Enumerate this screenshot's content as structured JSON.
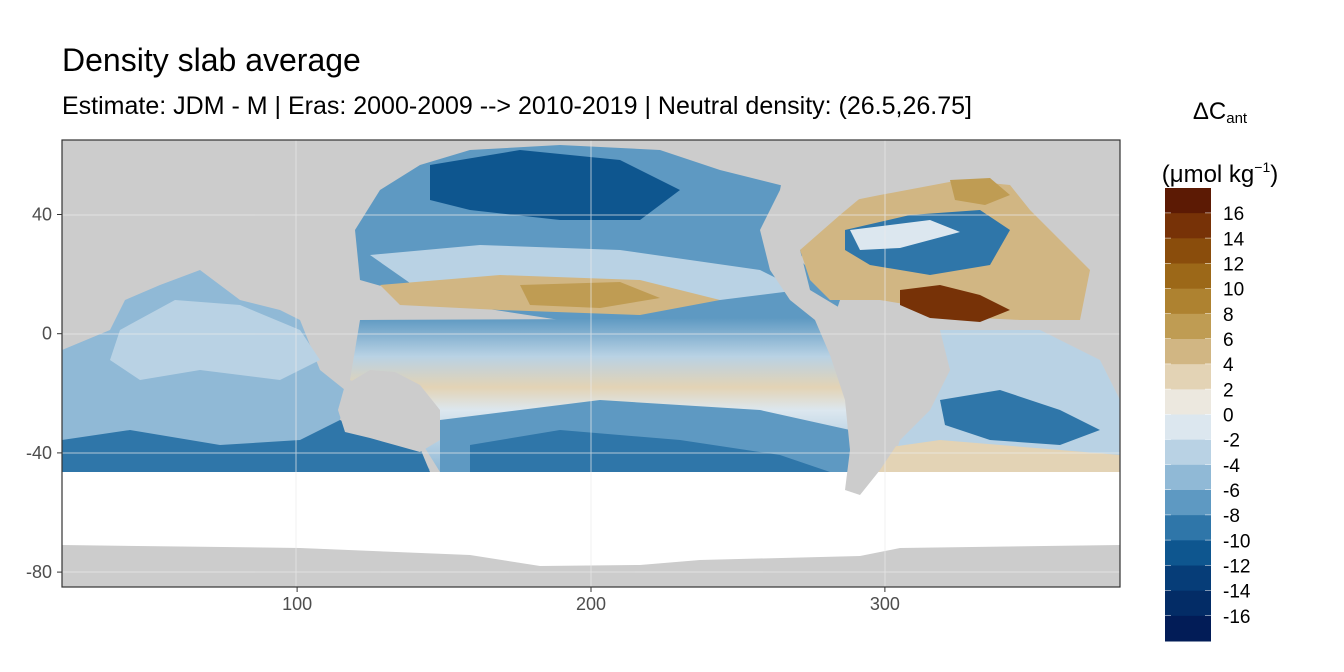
{
  "title": "Density slab average",
  "subtitle": "Estimate: JDM - M | Eras: 2000-2009 --> 2010-2019 | Neutral density: (26.5,26.75]",
  "legend": {
    "title_main": "ΔC",
    "title_sub": "ant",
    "unit_prefix": "(μmol kg",
    "unit_sup": "−1",
    "unit_suffix": ")",
    "bins": [
      {
        "label": "16",
        "color": "#5c1a04"
      },
      {
        "label": "14",
        "color": "#773207"
      },
      {
        "label": "12",
        "color": "#8a4d0c"
      },
      {
        "label": "10",
        "color": "#9c6818"
      },
      {
        "label": "8",
        "color": "#ae8230"
      },
      {
        "label": "6",
        "color": "#bf9c53"
      },
      {
        "label": "4",
        "color": "#d1b683"
      },
      {
        "label": "2",
        "color": "#e3d3b5"
      },
      {
        "label": "0",
        "color": "#ece8df"
      },
      {
        "label": "-2",
        "color": "#dce7ef"
      },
      {
        "label": "-4",
        "color": "#b9d2e4"
      },
      {
        "label": "-6",
        "color": "#90b9d6"
      },
      {
        "label": "-8",
        "color": "#5e99c2"
      },
      {
        "label": "-10",
        "color": "#2f76a9"
      },
      {
        "label": "-12",
        "color": "#0e568f"
      },
      {
        "label": "-14",
        "color": "#063d78"
      },
      {
        "label": "-16",
        "color": "#032c66"
      },
      {
        "label": "",
        "color": "#021c57"
      }
    ]
  },
  "chart_data": {
    "type": "heatmap",
    "title": "Density slab average",
    "subtitle": "Estimate: JDM - M | Eras: 2000-2009 --> 2010-2019 | Neutral density: (26.5,26.75]",
    "xlabel": "",
    "ylabel": "",
    "xlim": [
      20,
      380
    ],
    "ylim": [
      -85,
      65
    ],
    "x_ticks": [
      100,
      200,
      300
    ],
    "y_ticks": [
      40,
      0,
      -40,
      -80
    ],
    "grid": true,
    "legend_position": "right",
    "colors": {
      "land": "#cccccc",
      "missing": "#ffffff",
      "panel_border": "#333333",
      "grid": "#ebebeb"
    }
  }
}
